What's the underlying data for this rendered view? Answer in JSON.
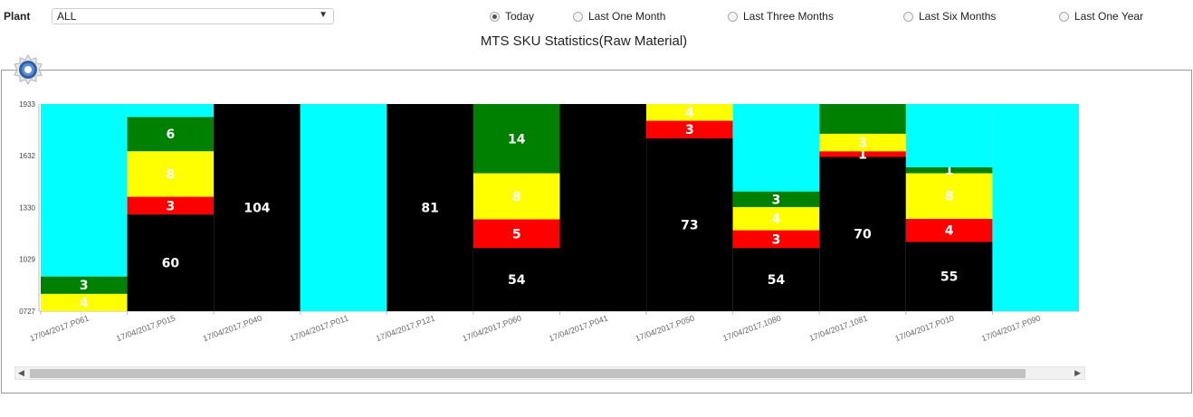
{
  "filters": {
    "plant_label": "Plant",
    "plant_value": "ALL",
    "periods": [
      {
        "label": "Today",
        "selected": true
      },
      {
        "label": "Last One Month",
        "selected": false
      },
      {
        "label": "Last Three Months",
        "selected": false
      },
      {
        "label": "Last Six Months",
        "selected": false
      },
      {
        "label": "Last One Year",
        "selected": false
      }
    ]
  },
  "chart_data": {
    "type": "bar",
    "stacked": true,
    "title": "MTS SKU Statistics(Raw Material)",
    "xlabel": "",
    "ylabel": "",
    "ylim": [
      727,
      1933
    ],
    "yticks": [
      "1933",
      "1632",
      "1330",
      "1029",
      "0727"
    ],
    "categories": [
      "17/04/2017,P061",
      "17/04/2017,P015",
      "17/04/2017,P040",
      "17/04/2017,P011",
      "17/04/2017,P121",
      "17/04/2017,P060",
      "17/04/2017,P041",
      "17/04/2017,P050",
      "17/04/2017,1080",
      "17/04/2017,1081",
      "17/04/2017,P010",
      "17/04/2017,P090"
    ],
    "series": [
      {
        "color": "#000000",
        "values": [
          null,
          60,
          104,
          null,
          81,
          54,
          null,
          73,
          54,
          70,
          55,
          null
        ],
        "range": [
          [
            null,
            null
          ],
          [
            727,
            1290
          ],
          [
            727,
            1933
          ],
          [
            null,
            null
          ],
          [
            727,
            1933
          ],
          [
            727,
            1095
          ],
          [
            727,
            1933
          ],
          [
            727,
            1733
          ],
          [
            727,
            1095
          ],
          [
            727,
            1625
          ],
          [
            727,
            1130
          ],
          [
            null,
            null
          ]
        ]
      },
      {
        "color": "#ff0000",
        "values": [
          null,
          3,
          null,
          null,
          null,
          5,
          null,
          3,
          3,
          1,
          4,
          null
        ],
        "range": [
          [
            null,
            null
          ],
          [
            1290,
            1393
          ],
          [
            null,
            null
          ],
          [
            null,
            null
          ],
          [
            null,
            null
          ],
          [
            1095,
            1262
          ],
          [
            null,
            null
          ],
          [
            1733,
            1836
          ],
          [
            1095,
            1198
          ],
          [
            1625,
            1658
          ],
          [
            1130,
            1265
          ],
          [
            null,
            null
          ]
        ]
      },
      {
        "color": "#ffff00",
        "values": [
          4,
          8,
          null,
          null,
          null,
          8,
          null,
          4,
          4,
          3,
          8,
          null
        ],
        "range": [
          [
            727,
            828
          ],
          [
            1393,
            1658
          ],
          [
            null,
            null
          ],
          [
            null,
            null
          ],
          [
            null,
            null
          ],
          [
            1262,
            1530
          ],
          [
            null,
            null
          ],
          [
            1836,
            1933
          ],
          [
            1198,
            1333
          ],
          [
            1658,
            1760
          ],
          [
            1265,
            1530
          ],
          [
            null,
            null
          ]
        ]
      },
      {
        "color": "#008000",
        "values": [
          3,
          6,
          null,
          null,
          null,
          14,
          null,
          null,
          3,
          null,
          1,
          null
        ],
        "range": [
          [
            828,
            929
          ],
          [
            1658,
            1858
          ],
          [
            null,
            null
          ],
          [
            null,
            null
          ],
          [
            null,
            null
          ],
          [
            1530,
            1933
          ],
          [
            null,
            null
          ],
          [
            null,
            null
          ],
          [
            1333,
            1424
          ],
          [
            1760,
            1933
          ],
          [
            1530,
            1565
          ],
          [
            null,
            null
          ]
        ]
      },
      {
        "color": "#00ffff",
        "values": [
          null,
          null,
          null,
          null,
          null,
          null,
          null,
          null,
          null,
          null,
          null,
          null
        ],
        "range": [
          [
            929,
            1933
          ],
          [
            1858,
            1933
          ],
          [
            null,
            null
          ],
          [
            727,
            1933
          ],
          [
            null,
            null
          ],
          [
            null,
            null
          ],
          [
            null,
            null
          ],
          [
            null,
            null
          ],
          [
            1424,
            1933
          ],
          [
            null,
            null
          ],
          [
            1565,
            1933
          ],
          [
            727,
            1933
          ]
        ]
      }
    ],
    "legend": "none",
    "grid": false
  }
}
